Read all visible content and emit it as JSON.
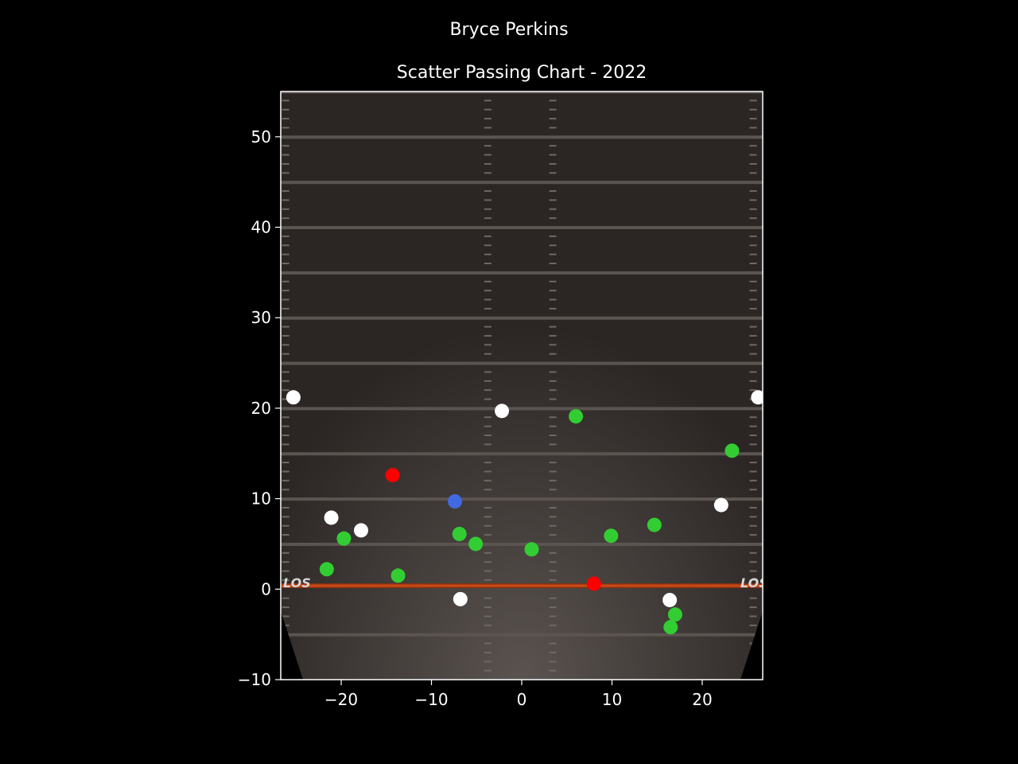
{
  "chart_data": {
    "type": "scatter",
    "title": "Bryce Perkins",
    "subtitle": "Scatter Passing Chart - 2022",
    "xlim": [
      -26.7,
      26.7
    ],
    "ylim": [
      -10,
      55
    ],
    "xticks": [
      -20,
      -10,
      0,
      10,
      20
    ],
    "yticks": [
      -10,
      0,
      10,
      20,
      30,
      40,
      50
    ],
    "xtick_labels": [
      "−20",
      "−10",
      "0",
      "10",
      "20"
    ],
    "ytick_labels": [
      "−10",
      "0",
      "10",
      "20",
      "30",
      "40",
      "50"
    ],
    "field_marker_left": "LOS",
    "field_marker_right": "LOS",
    "grid": false,
    "colors": {
      "background": "#000000",
      "field": "#2f2a28",
      "line_of_scrimmage": "#c0400f",
      "complete": "#32cd32",
      "incomplete": "#ffffff",
      "interception": "#ff0000",
      "touchdown": "#4169e1"
    },
    "points": [
      {
        "x": -25.3,
        "y": 21.2,
        "color": "#ffffff"
      },
      {
        "x": 26.2,
        "y": 21.2,
        "color": "#ffffff"
      },
      {
        "x": -2.2,
        "y": 19.7,
        "color": "#ffffff"
      },
      {
        "x": 6.0,
        "y": 19.1,
        "color": "#32cd32"
      },
      {
        "x": 23.3,
        "y": 15.3,
        "color": "#32cd32"
      },
      {
        "x": -14.3,
        "y": 12.6,
        "color": "#ff0000"
      },
      {
        "x": -7.4,
        "y": 9.7,
        "color": "#4169e1"
      },
      {
        "x": 22.1,
        "y": 9.3,
        "color": "#ffffff"
      },
      {
        "x": -21.1,
        "y": 7.9,
        "color": "#ffffff"
      },
      {
        "x": -17.8,
        "y": 6.5,
        "color": "#ffffff"
      },
      {
        "x": -19.7,
        "y": 5.6,
        "color": "#32cd32"
      },
      {
        "x": -6.9,
        "y": 6.1,
        "color": "#32cd32"
      },
      {
        "x": -5.1,
        "y": 5.0,
        "color": "#32cd32"
      },
      {
        "x": 1.1,
        "y": 4.4,
        "color": "#32cd32"
      },
      {
        "x": 9.9,
        "y": 5.9,
        "color": "#32cd32"
      },
      {
        "x": 14.7,
        "y": 7.1,
        "color": "#32cd32"
      },
      {
        "x": -21.6,
        "y": 2.2,
        "color": "#32cd32"
      },
      {
        "x": -13.7,
        "y": 1.5,
        "color": "#32cd32"
      },
      {
        "x": 8.0,
        "y": 0.6,
        "color": "#ff0000"
      },
      {
        "x": -6.8,
        "y": -1.1,
        "color": "#ffffff"
      },
      {
        "x": 16.4,
        "y": -1.2,
        "color": "#ffffff"
      },
      {
        "x": 17.0,
        "y": -2.8,
        "color": "#32cd32"
      },
      {
        "x": 16.5,
        "y": -4.2,
        "color": "#32cd32"
      }
    ]
  }
}
